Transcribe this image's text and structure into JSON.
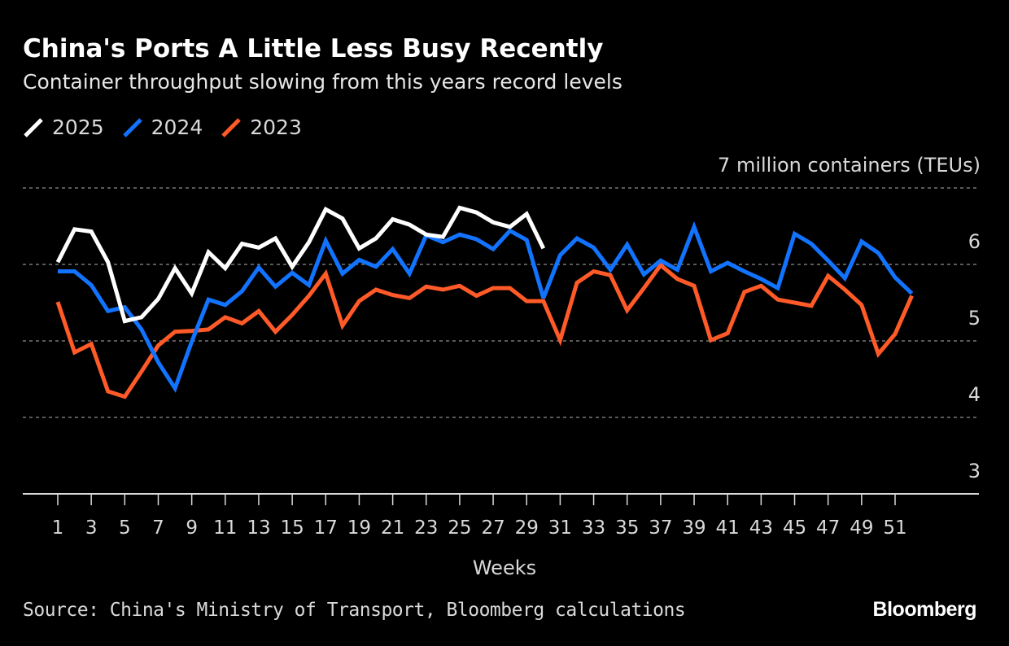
{
  "title": "China's Ports A Little Less Busy Recently",
  "subtitle": "Container throughput slowing from this years record levels",
  "source": "Source: China's Ministry of Transport, Bloomberg calculations",
  "logo": "Bloomberg",
  "colors": {
    "2025": "#ffffff",
    "2024": "#1273ff",
    "2023": "#ff5a28"
  },
  "chart_data": {
    "type": "line",
    "xlabel": "Weeks",
    "ylabel": "",
    "unit_label": "7 million containers (TEUs)",
    "ylim": [
      3,
      7
    ],
    "xlim": [
      1,
      52
    ],
    "yticks": [
      3,
      4,
      5,
      6,
      7
    ],
    "ytick_labels": [
      "3",
      "4",
      "5",
      "6",
      "7 million containers (TEUs)"
    ],
    "xticks": [
      "1",
      "3",
      "5",
      "7",
      "9",
      "11",
      "13",
      "15",
      "17",
      "19",
      "21",
      "23",
      "25",
      "27",
      "29",
      "31",
      "33",
      "35",
      "37",
      "39",
      "41",
      "43",
      "45",
      "47",
      "49",
      "51"
    ],
    "grid": true,
    "legend_placement": "top-left",
    "series": [
      {
        "name": "2025",
        "color": "#ffffff",
        "values": [
          6.03,
          6.46,
          6.43,
          6.03,
          5.26,
          5.31,
          5.55,
          5.95,
          5.62,
          6.16,
          5.95,
          6.27,
          6.22,
          6.34,
          5.97,
          6.29,
          6.72,
          6.6,
          6.21,
          6.34,
          6.59,
          6.52,
          6.39,
          6.36,
          6.74,
          6.68,
          6.55,
          6.49,
          6.66,
          6.21
        ]
      },
      {
        "name": "2024",
        "color": "#1273ff",
        "values": [
          5.91,
          5.91,
          5.73,
          5.39,
          5.44,
          5.15,
          4.72,
          4.38,
          4.99,
          5.54,
          5.47,
          5.65,
          5.96,
          5.71,
          5.89,
          5.73,
          6.31,
          5.88,
          6.06,
          5.97,
          6.2,
          5.88,
          6.38,
          6.29,
          6.39,
          6.33,
          6.2,
          6.44,
          6.32,
          5.56,
          6.12,
          6.34,
          6.22,
          5.93,
          6.26,
          5.87,
          6.05,
          5.93,
          6.49,
          5.91,
          6.02,
          5.91,
          5.81,
          5.69,
          6.4,
          6.27,
          6.05,
          5.82,
          6.3,
          6.15,
          5.83,
          5.62
        ]
      },
      {
        "name": "2023",
        "color": "#ff5a28",
        "values": [
          5.51,
          4.85,
          4.96,
          4.34,
          4.27,
          4.6,
          4.94,
          5.12,
          5.13,
          5.15,
          5.31,
          5.23,
          5.39,
          5.12,
          5.34,
          5.59,
          5.88,
          5.2,
          5.52,
          5.67,
          5.6,
          5.56,
          5.71,
          5.67,
          5.72,
          5.59,
          5.69,
          5.69,
          5.52,
          5.52,
          5.01,
          5.76,
          5.91,
          5.86,
          5.4,
          5.69,
          5.99,
          5.81,
          5.72,
          5.01,
          5.1,
          5.64,
          5.72,
          5.54,
          5.5,
          5.46,
          5.85,
          5.67,
          5.47,
          4.83,
          5.09,
          5.59
        ]
      }
    ]
  }
}
